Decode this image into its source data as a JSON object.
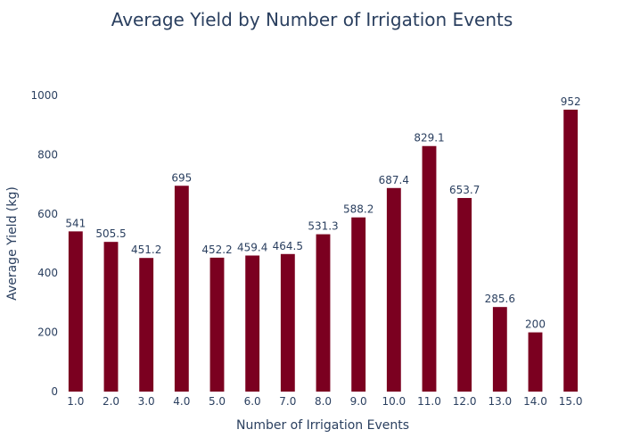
{
  "chart_data": {
    "type": "bar",
    "title": "Average Yield by Number of Irrigation Events",
    "xlabel": "Number of Irrigation Events",
    "ylabel": "Average Yield (kg)",
    "categories": [
      "1.0",
      "2.0",
      "3.0",
      "4.0",
      "5.0",
      "6.0",
      "7.0",
      "8.0",
      "9.0",
      "10.0",
      "11.0",
      "12.0",
      "13.0",
      "14.0",
      "15.0"
    ],
    "values": [
      541,
      505.5,
      451.2,
      695,
      452.2,
      459.4,
      464.5,
      531.3,
      588.2,
      687.4,
      829.1,
      653.7,
      285.6,
      200,
      952
    ],
    "data_labels": [
      "541",
      "505.5",
      "451.2",
      "695",
      "452.2",
      "459.4",
      "464.5",
      "531.3",
      "588.2",
      "687.4",
      "829.1",
      "653.7",
      "285.6",
      "200",
      "952"
    ],
    "ylim": [
      0,
      1000
    ],
    "yticks": [
      0,
      200,
      400,
      600,
      800,
      1000
    ],
    "ytick_labels": [
      "0",
      "200",
      "400",
      "600",
      "800",
      "1000"
    ],
    "bar_color": "#7b0020",
    "text_color": "#2a3f5f",
    "grid": false,
    "legend": "none"
  }
}
